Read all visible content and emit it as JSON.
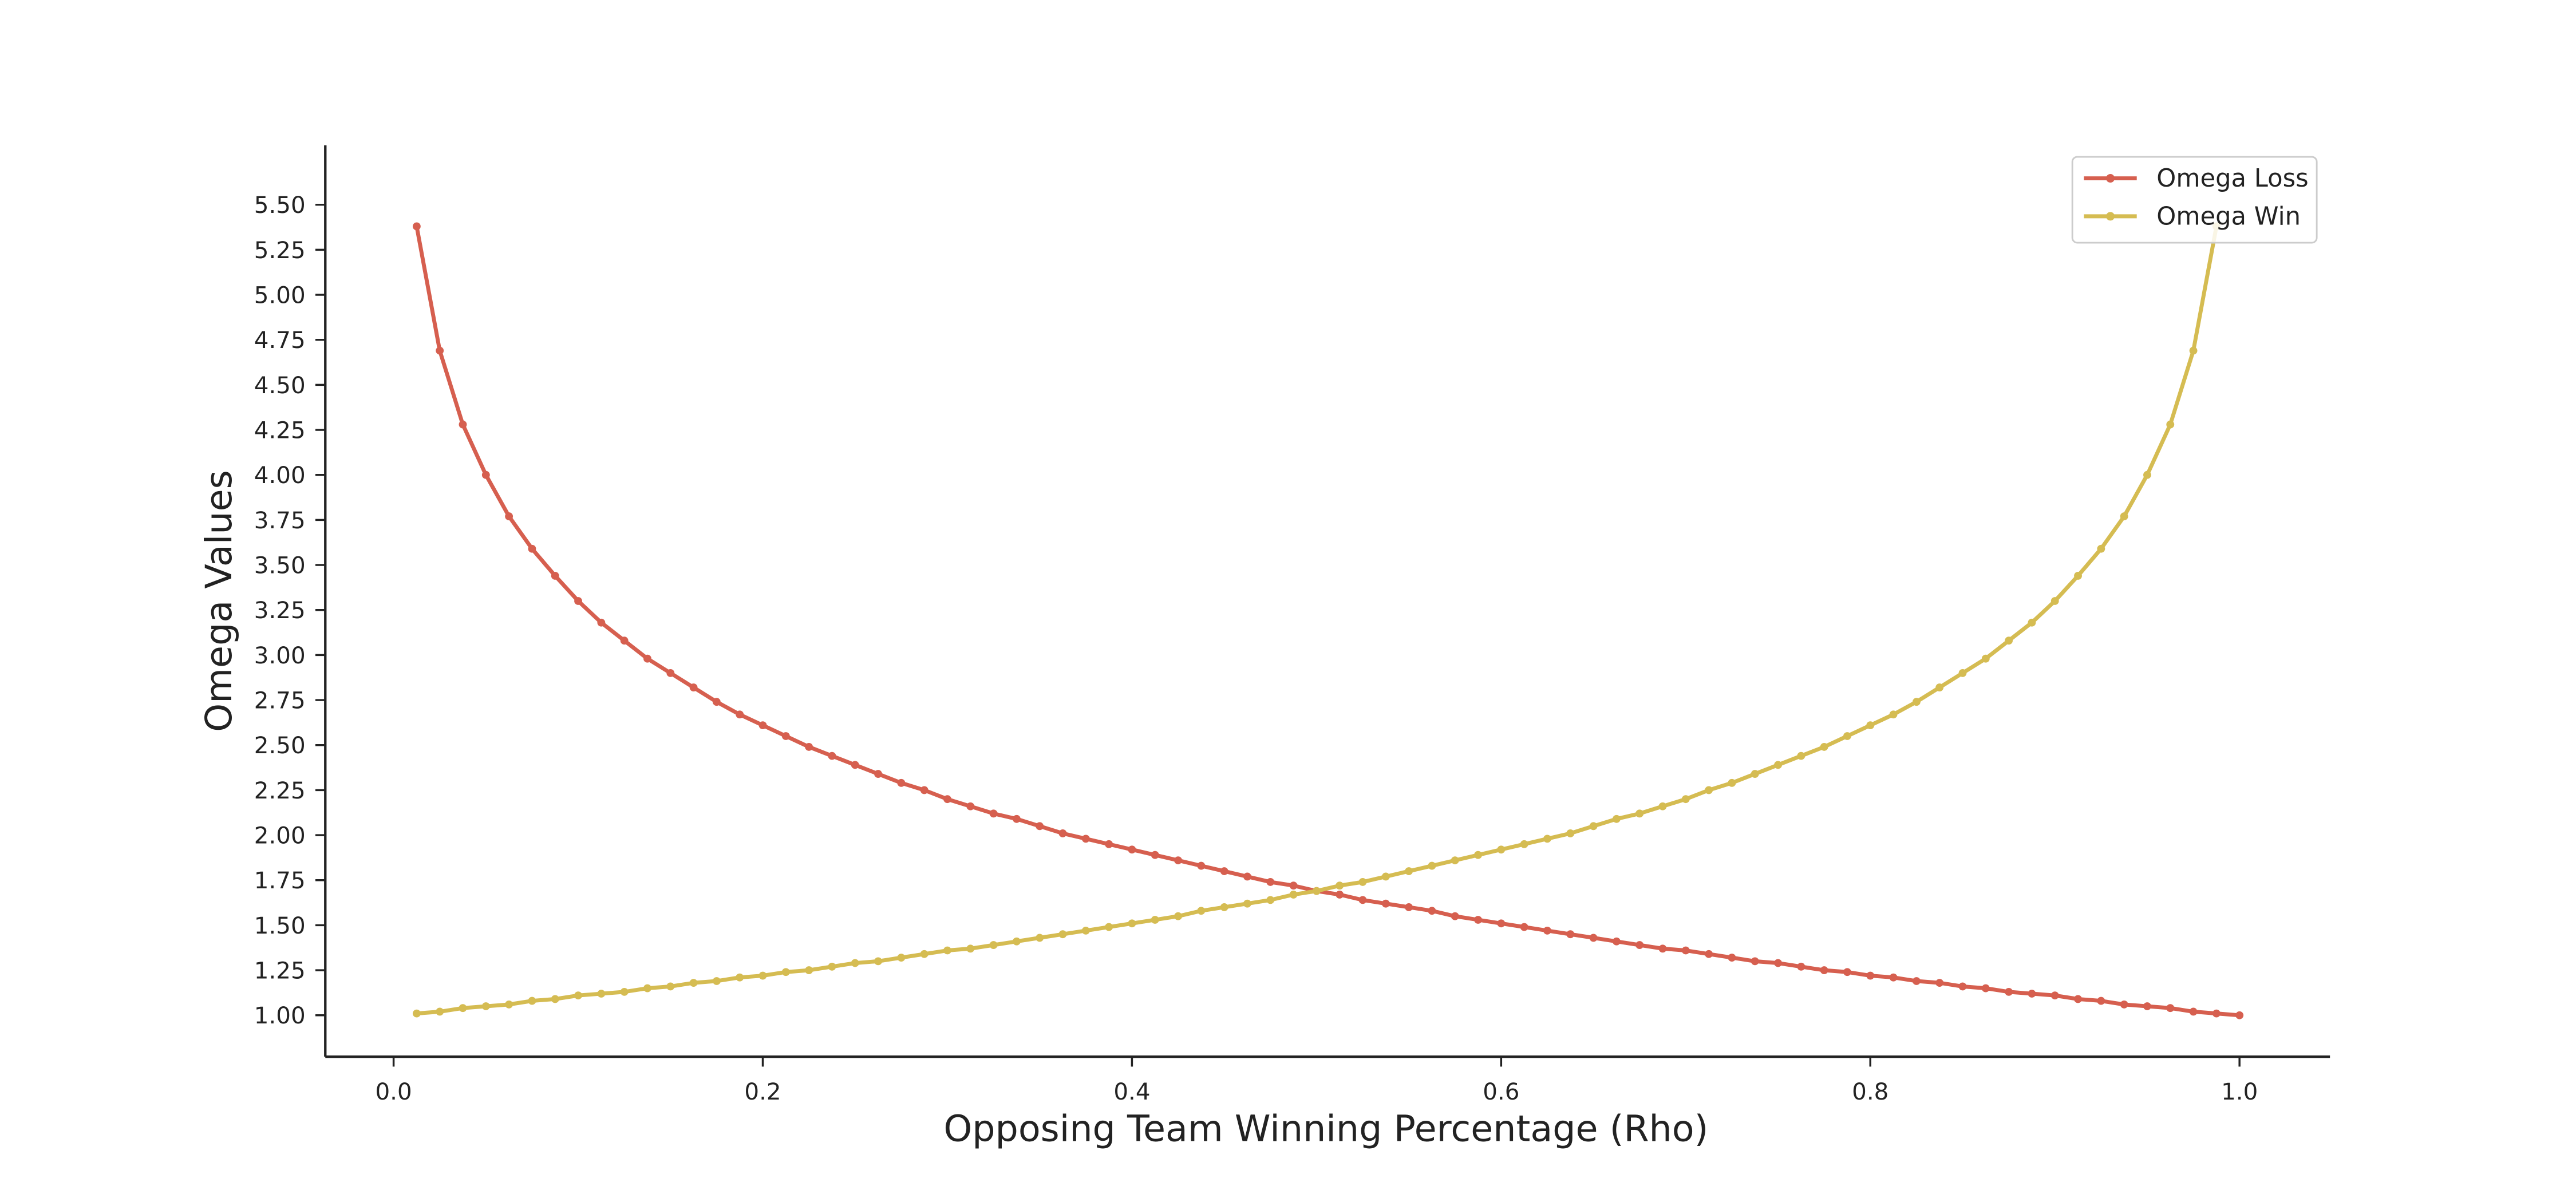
{
  "chart_data": {
    "type": "line",
    "xlabel": "Opposing Team Winning Percentage (Rho)",
    "ylabel": "Omega Values",
    "x": [
      0.0125,
      0.025,
      0.0375,
      0.05,
      0.0625,
      0.075,
      0.0875,
      0.1,
      0.1125,
      0.125,
      0.1375,
      0.15,
      0.1625,
      0.175,
      0.1875,
      0.2,
      0.2125,
      0.225,
      0.2375,
      0.25,
      0.2625,
      0.275,
      0.2875,
      0.3,
      0.3125,
      0.325,
      0.3375,
      0.35,
      0.3625,
      0.375,
      0.3875,
      0.4,
      0.4125,
      0.425,
      0.4375,
      0.45,
      0.4625,
      0.475,
      0.4875,
      0.5,
      0.5125,
      0.525,
      0.5375,
      0.55,
      0.5625,
      0.575,
      0.5875,
      0.6,
      0.6125,
      0.625,
      0.6375,
      0.65,
      0.6625,
      0.675,
      0.6875,
      0.7,
      0.7125,
      0.725,
      0.7375,
      0.75,
      0.7625,
      0.775,
      0.7875,
      0.8,
      0.8125,
      0.825,
      0.8375,
      0.85,
      0.8625,
      0.875,
      0.8875,
      0.9,
      0.9125,
      0.925,
      0.9375,
      0.95,
      0.9625,
      0.975,
      0.9875,
      1.0
    ],
    "series": [
      {
        "name": "Omega Loss",
        "color": "#d65f4f",
        "values": [
          5.38,
          4.69,
          4.28,
          4.0,
          3.77,
          3.59,
          3.44,
          3.3,
          3.18,
          3.08,
          2.98,
          2.9,
          2.82,
          2.74,
          2.67,
          2.61,
          2.55,
          2.49,
          2.44,
          2.39,
          2.34,
          2.29,
          2.25,
          2.2,
          2.16,
          2.12,
          2.09,
          2.05,
          2.01,
          1.98,
          1.95,
          1.92,
          1.89,
          1.86,
          1.83,
          1.8,
          1.77,
          1.74,
          1.72,
          1.69,
          1.67,
          1.64,
          1.62,
          1.6,
          1.58,
          1.55,
          1.53,
          1.51,
          1.49,
          1.47,
          1.45,
          1.43,
          1.41,
          1.39,
          1.37,
          1.36,
          1.34,
          1.32,
          1.3,
          1.29,
          1.27,
          1.25,
          1.24,
          1.22,
          1.21,
          1.19,
          1.18,
          1.16,
          1.15,
          1.13,
          1.12,
          1.11,
          1.09,
          1.08,
          1.06,
          1.05,
          1.04,
          1.02,
          1.01,
          1.0
        ]
      },
      {
        "name": "Omega Win",
        "color": "#d5bc52",
        "values": [
          1.01,
          1.02,
          1.04,
          1.05,
          1.06,
          1.08,
          1.09,
          1.11,
          1.12,
          1.13,
          1.15,
          1.16,
          1.18,
          1.19,
          1.21,
          1.22,
          1.24,
          1.25,
          1.27,
          1.29,
          1.3,
          1.32,
          1.34,
          1.36,
          1.37,
          1.39,
          1.41,
          1.43,
          1.45,
          1.47,
          1.49,
          1.51,
          1.53,
          1.55,
          1.58,
          1.6,
          1.62,
          1.64,
          1.67,
          1.69,
          1.72,
          1.74,
          1.77,
          1.8,
          1.83,
          1.86,
          1.89,
          1.92,
          1.95,
          1.98,
          2.01,
          2.05,
          2.09,
          2.12,
          2.16,
          2.2,
          2.25,
          2.29,
          2.34,
          2.39,
          2.44,
          2.49,
          2.55,
          2.61,
          2.67,
          2.74,
          2.82,
          2.9,
          2.98,
          3.08,
          3.18,
          3.3,
          3.44,
          3.59,
          3.77,
          4.0,
          4.28,
          4.69,
          5.38,
          null
        ]
      }
    ],
    "xlim": [
      -0.037,
      1.049
    ],
    "ylim": [
      0.77,
      5.83
    ],
    "xticks": [
      {
        "value": 0,
        "label": "0.0"
      },
      0.2,
      0.4,
      0.6,
      0.8,
      {
        "value": 1,
        "label": "1.0"
      }
    ],
    "yticks": [
      {
        "value": 1,
        "label": "1.00"
      },
      {
        "value": 1.25,
        "label": "1.25"
      },
      {
        "value": 1.5,
        "label": "1.50"
      },
      {
        "value": 1.75,
        "label": "1.75"
      },
      {
        "value": 2,
        "label": "2.00"
      },
      {
        "value": 2.25,
        "label": "2.25"
      },
      {
        "value": 2.5,
        "label": "2.50"
      },
      {
        "value": 2.75,
        "label": "2.75"
      },
      {
        "value": 3,
        "label": "3.00"
      },
      {
        "value": 3.25,
        "label": "3.25"
      },
      {
        "value": 3.5,
        "label": "3.50"
      },
      {
        "value": 3.75,
        "label": "3.75"
      },
      {
        "value": 4,
        "label": "4.00"
      },
      {
        "value": 4.25,
        "label": "4.25"
      },
      {
        "value": 4.5,
        "label": "4.50"
      },
      {
        "value": 4.75,
        "label": "4.75"
      },
      {
        "value": 5,
        "label": "5.00"
      },
      {
        "value": 5.25,
        "label": "5.25"
      },
      {
        "value": 5.5,
        "label": "5.50"
      }
    ],
    "grid": false,
    "legend": "upper right"
  }
}
